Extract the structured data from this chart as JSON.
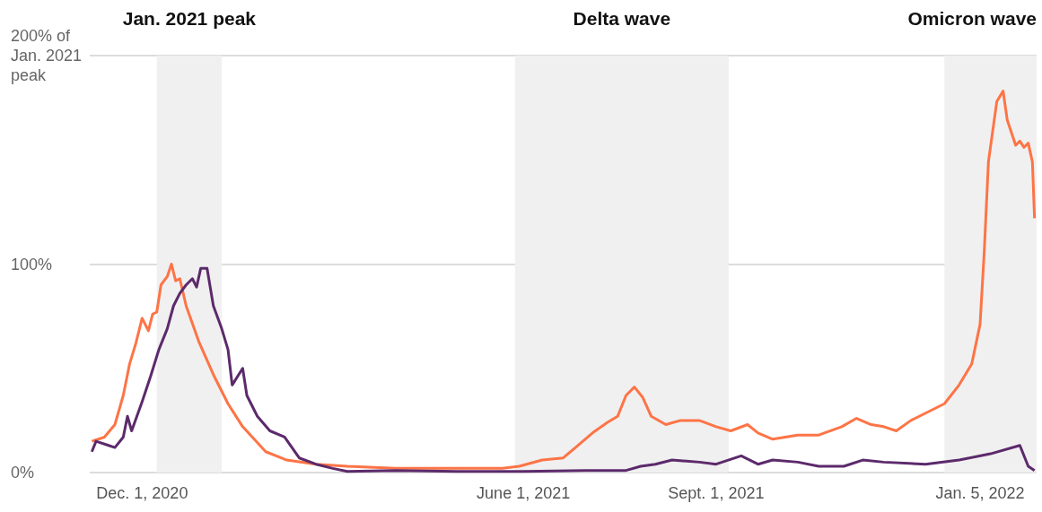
{
  "chart_data": {
    "type": "line",
    "xlim": [
      "2020-11-06",
      "2022-02-01"
    ],
    "xticks": [
      {
        "value": "2020-12-01",
        "label": "Dec. 1, 2020"
      },
      {
        "value": "2021-06-01",
        "label": "June 1, 2021"
      },
      {
        "value": "2021-09-01",
        "label": "Sept. 1, 2021"
      },
      {
        "value": "2022-01-05",
        "label": "Jan. 5, 2022"
      }
    ],
    "ylim": [
      0,
      200
    ],
    "yticks": [
      {
        "value": 0,
        "label": "0%"
      },
      {
        "value": 100,
        "label": "100%"
      },
      {
        "value": 200,
        "label": "200% of Jan. 2021 peak"
      }
    ],
    "grid": "y",
    "bands": [
      {
        "axis": "x",
        "from": "2020-12-08",
        "to": "2021-01-08",
        "label": "Jan. 2021 peak",
        "color": "#f0f0f0"
      },
      {
        "axis": "x",
        "from": "2021-05-28",
        "to": "2021-09-07",
        "label": "Delta wave",
        "color": "#f0f0f0"
      },
      {
        "axis": "x",
        "from": "2021-12-19",
        "to": "2022-02-01",
        "label": "Omicron wave",
        "color": "#f0f0f0"
      }
    ],
    "series": [
      {
        "color": "#fd7446",
        "x": [
          "2020-11-07",
          "2020-11-13",
          "2020-11-18",
          "2020-11-22",
          "2020-11-25",
          "2020-11-28",
          "2020-12-01",
          "2020-12-04",
          "2020-12-06",
          "2020-12-08",
          "2020-12-10",
          "2020-12-13",
          "2020-12-15",
          "2020-12-17",
          "2020-12-19",
          "2020-12-22",
          "2020-12-28",
          "2021-01-04",
          "2021-01-11",
          "2021-01-18",
          "2021-01-29",
          "2021-02-08",
          "2021-02-22",
          "2021-03-09",
          "2021-04-01",
          "2021-05-01",
          "2021-05-22",
          "2021-05-30",
          "2021-06-10",
          "2021-06-20",
          "2021-06-27",
          "2021-07-04",
          "2021-07-11",
          "2021-07-16",
          "2021-07-20",
          "2021-07-24",
          "2021-07-28",
          "2021-08-01",
          "2021-08-08",
          "2021-08-15",
          "2021-08-24",
          "2021-09-01",
          "2021-09-08",
          "2021-09-16",
          "2021-09-21",
          "2021-09-28",
          "2021-10-10",
          "2021-10-20",
          "2021-10-31",
          "2021-11-07",
          "2021-11-14",
          "2021-11-20",
          "2021-11-26",
          "2021-12-03",
          "2021-12-13",
          "2021-12-19",
          "2021-12-26",
          "2022-01-01",
          "2022-01-05",
          "2022-01-07",
          "2022-01-09",
          "2022-01-13",
          "2022-01-16",
          "2022-01-18",
          "2022-01-22",
          "2022-01-24",
          "2022-01-26",
          "2022-01-28",
          "2022-01-30",
          "2022-01-31"
        ],
        "values": [
          15,
          17,
          23,
          37,
          52,
          62,
          74,
          68,
          76,
          77,
          90,
          94,
          100,
          92,
          93,
          80,
          63,
          47,
          33,
          22,
          10,
          6,
          4,
          3,
          2,
          2,
          2,
          3,
          6,
          7,
          13,
          19,
          24,
          27,
          37,
          41,
          36,
          27,
          23,
          25,
          25,
          22,
          20,
          23,
          19,
          16,
          18,
          18,
          22,
          26,
          23,
          22,
          20,
          25,
          30,
          33,
          42,
          52,
          71,
          106,
          149,
          178,
          183,
          169,
          157,
          159,
          156,
          158,
          149,
          122
        ]
      },
      {
        "color": "#5c2a6b",
        "x": [
          "2020-11-07",
          "2020-11-09",
          "2020-11-15",
          "2020-11-18",
          "2020-11-22",
          "2020-11-24",
          "2020-11-26",
          "2020-12-01",
          "2020-12-05",
          "2020-12-09",
          "2020-12-13",
          "2020-12-16",
          "2020-12-19",
          "2020-12-22",
          "2020-12-25",
          "2020-12-27",
          "2020-12-29",
          "2021-01-01",
          "2021-01-04",
          "2021-01-08",
          "2021-01-11",
          "2021-01-13",
          "2021-01-18",
          "2021-01-20",
          "2021-01-25",
          "2021-01-31",
          "2021-02-07",
          "2021-02-14",
          "2021-02-22",
          "2021-03-02",
          "2021-03-09",
          "2021-04-01",
          "2021-05-01",
          "2021-06-01",
          "2021-07-01",
          "2021-07-20",
          "2021-07-27",
          "2021-08-03",
          "2021-08-11",
          "2021-08-24",
          "2021-09-01",
          "2021-09-13",
          "2021-09-21",
          "2021-09-28",
          "2021-10-10",
          "2021-10-20",
          "2021-11-01",
          "2021-11-10",
          "2021-11-20",
          "2021-12-10",
          "2021-12-26",
          "2022-01-10",
          "2022-01-24",
          "2022-01-28",
          "2022-01-31"
        ],
        "values": [
          10,
          15,
          13,
          12,
          17,
          27,
          20,
          34,
          46,
          59,
          69,
          80,
          86,
          90,
          93,
          89,
          98,
          98,
          80,
          69,
          59,
          42,
          50,
          37,
          27,
          20,
          17,
          7,
          4,
          2,
          0.5,
          1,
          0.5,
          0.5,
          1,
          1,
          3,
          4,
          6,
          5,
          4,
          8,
          4,
          6,
          5,
          3,
          3,
          6,
          5,
          4,
          6,
          9,
          13,
          3,
          1
        ]
      }
    ]
  }
}
